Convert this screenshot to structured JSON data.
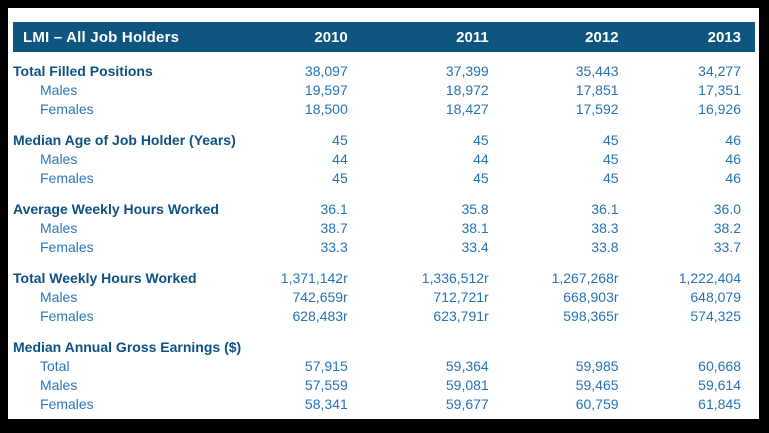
{
  "colors": {
    "frame_bg": "#000000",
    "panel_bg": "#ffffff",
    "header_bg": "#0e567f",
    "header_text": "#ffffff",
    "section_label": "#0c5183",
    "sub_label": "#2878b8",
    "value": "#2474b6"
  },
  "table": {
    "title": "LMI – All Job Holders",
    "years": [
      "2010",
      "2011",
      "2012",
      "2013"
    ],
    "sections": [
      {
        "rows": [
          {
            "label": "Total Filled Positions",
            "style": "section",
            "values": [
              "38,097",
              "37,399",
              "35,443",
              "34,277"
            ]
          },
          {
            "label": "Males",
            "style": "sub",
            "values": [
              "19,597",
              "18,972",
              "17,851",
              "17,351"
            ]
          },
          {
            "label": "Females",
            "style": "sub",
            "values": [
              "18,500",
              "18,427",
              "17,592",
              "16,926"
            ]
          }
        ]
      },
      {
        "rows": [
          {
            "label": "Median Age of Job Holder (Years)",
            "style": "section",
            "values": [
              "45",
              "45",
              "45",
              "46"
            ]
          },
          {
            "label": "Males",
            "style": "sub",
            "values": [
              "44",
              "44",
              "45",
              "46"
            ]
          },
          {
            "label": "Females",
            "style": "sub",
            "values": [
              "45",
              "45",
              "45",
              "46"
            ]
          }
        ]
      },
      {
        "rows": [
          {
            "label": "Average Weekly Hours Worked",
            "style": "section",
            "values": [
              "36.1",
              "35.8",
              "36.1",
              "36.0"
            ]
          },
          {
            "label": "Males",
            "style": "sub",
            "values": [
              "38.7",
              "38.1",
              "38.3",
              "38.2"
            ]
          },
          {
            "label": "Females",
            "style": "sub",
            "values": [
              "33.3",
              "33.4",
              "33.8",
              "33.7"
            ]
          }
        ]
      },
      {
        "rows": [
          {
            "label": "Total Weekly Hours Worked",
            "style": "section",
            "values": [
              "1,371,142r",
              "1,336,512r",
              "1,267,268r",
              "1,222,404"
            ]
          },
          {
            "label": "Males",
            "style": "sub",
            "values": [
              "742,659r",
              "712,721r",
              "668,903r",
              "648,079"
            ]
          },
          {
            "label": "Females",
            "style": "sub",
            "values": [
              "628,483r",
              "623,791r",
              "598,365r",
              "574,325"
            ]
          }
        ]
      },
      {
        "rows": [
          {
            "label": "Median Annual Gross Earnings ($)",
            "style": "section",
            "values": [
              "",
              "",
              "",
              ""
            ]
          },
          {
            "label": "Total",
            "style": "sub",
            "values": [
              "57,915",
              "59,364",
              "59,985",
              "60,668"
            ]
          },
          {
            "label": "Males",
            "style": "sub",
            "values": [
              "57,559",
              "59,081",
              "59,465",
              "59,614"
            ]
          },
          {
            "label": "Females",
            "style": "sub",
            "values": [
              "58,341",
              "59,677",
              "60,759",
              "61,845"
            ]
          }
        ]
      }
    ]
  },
  "chart_data": {
    "type": "table",
    "title": "LMI – All Job Holders",
    "columns": [
      "LMI – All Job Holders",
      "2010",
      "2011",
      "2012",
      "2013"
    ],
    "rows": [
      [
        "Total Filled Positions",
        "38,097",
        "37,399",
        "35,443",
        "34,277"
      ],
      [
        "Males",
        "19,597",
        "18,972",
        "17,851",
        "17,351"
      ],
      [
        "Females",
        "18,500",
        "18,427",
        "17,592",
        "16,926"
      ],
      [
        "Median Age of Job Holder (Years)",
        "45",
        "45",
        "45",
        "46"
      ],
      [
        "Males",
        "44",
        "44",
        "45",
        "46"
      ],
      [
        "Females",
        "45",
        "45",
        "45",
        "46"
      ],
      [
        "Average Weekly Hours Worked",
        "36.1",
        "35.8",
        "36.1",
        "36.0"
      ],
      [
        "Males",
        "38.7",
        "38.1",
        "38.3",
        "38.2"
      ],
      [
        "Females",
        "33.3",
        "33.4",
        "33.8",
        "33.7"
      ],
      [
        "Total Weekly Hours Worked",
        "1,371,142r",
        "1,336,512r",
        "1,267,268r",
        "1,222,404"
      ],
      [
        "Males",
        "742,659r",
        "712,721r",
        "668,903r",
        "648,079"
      ],
      [
        "Females",
        "628,483r",
        "623,791r",
        "598,365r",
        "574,325"
      ],
      [
        "Median Annual Gross Earnings ($)",
        "",
        "",
        "",
        ""
      ],
      [
        "Total",
        "57,915",
        "59,364",
        "59,985",
        "60,668"
      ],
      [
        "Males",
        "57,559",
        "59,081",
        "59,465",
        "59,614"
      ],
      [
        "Females",
        "58,341",
        "59,677",
        "60,759",
        "61,845"
      ]
    ]
  }
}
